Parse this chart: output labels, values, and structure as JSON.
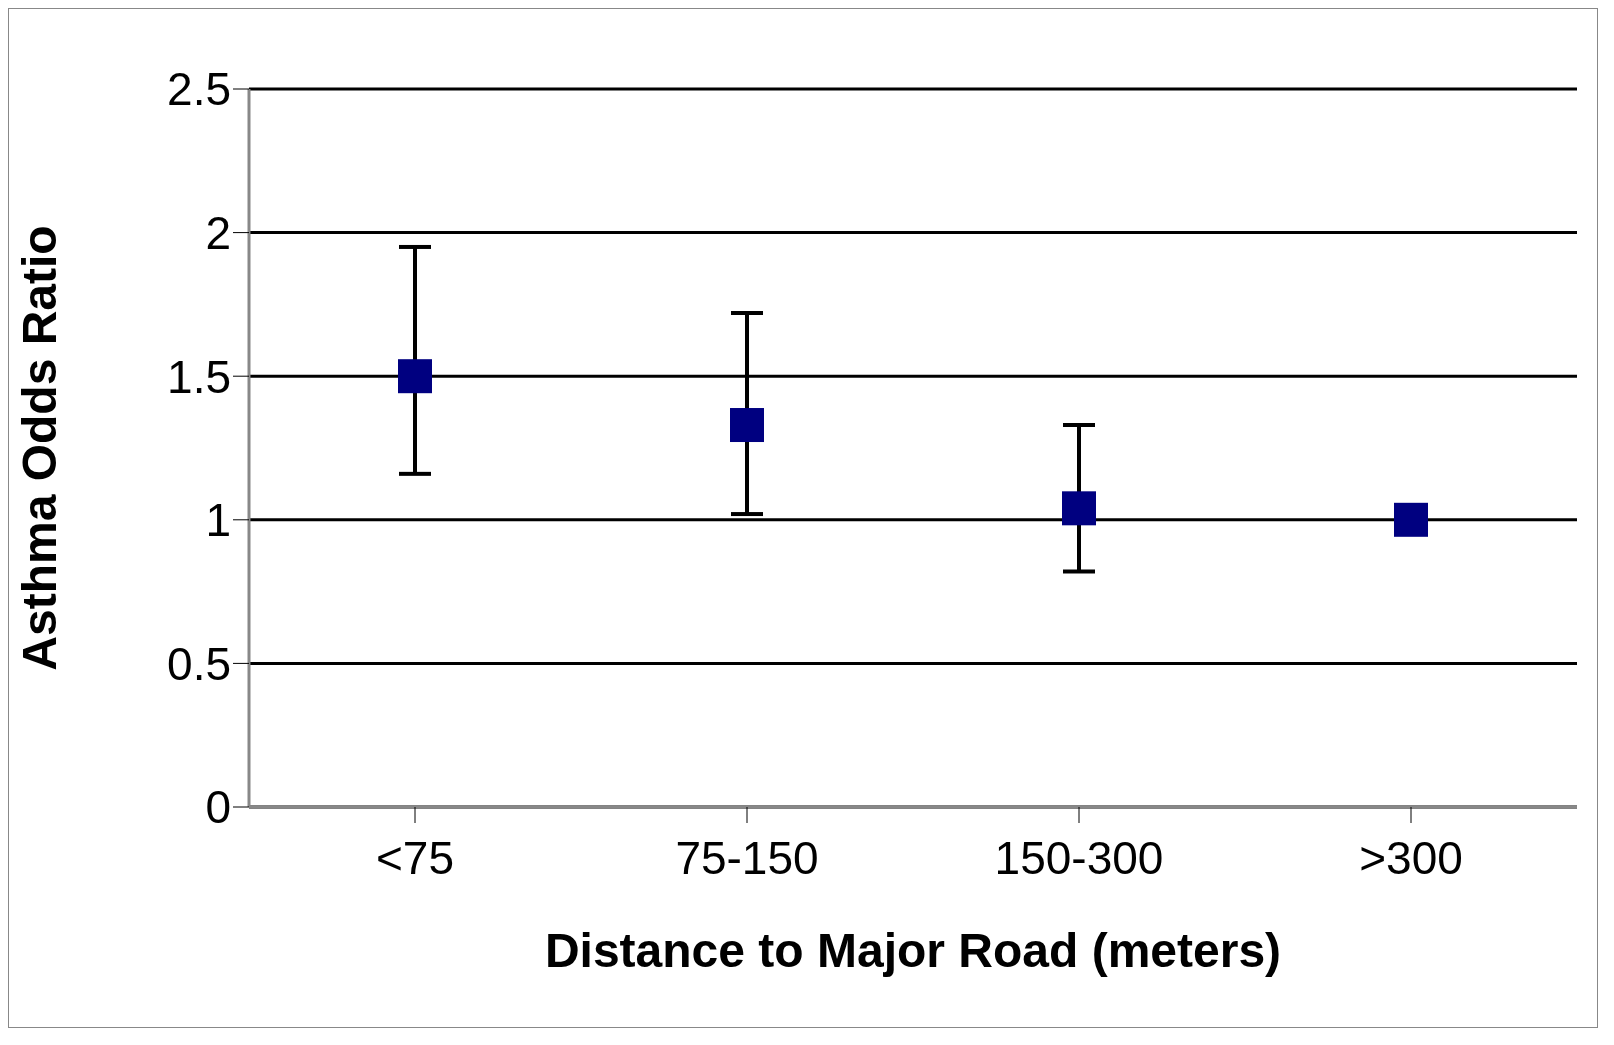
{
  "chart_data": {
    "type": "scatter",
    "xlabel": "Distance to Major Road (meters)",
    "ylabel": "Asthma Odds Ratio",
    "categories": [
      "<75",
      "75-150",
      "150-300",
      ">300"
    ],
    "series": [
      {
        "color": "#000080",
        "values": [
          1.5,
          1.33,
          1.04,
          1.0
        ],
        "errors": [
          [
            1.16,
            1.95
          ],
          [
            1.02,
            1.72
          ],
          [
            0.82,
            1.33
          ],
          null
        ]
      }
    ],
    "ylim": [
      0,
      2.5
    ],
    "yticks": [
      0,
      0.5,
      1,
      1.5,
      2,
      2.5
    ],
    "grid": "y",
    "marker": "square",
    "legend": false
  }
}
